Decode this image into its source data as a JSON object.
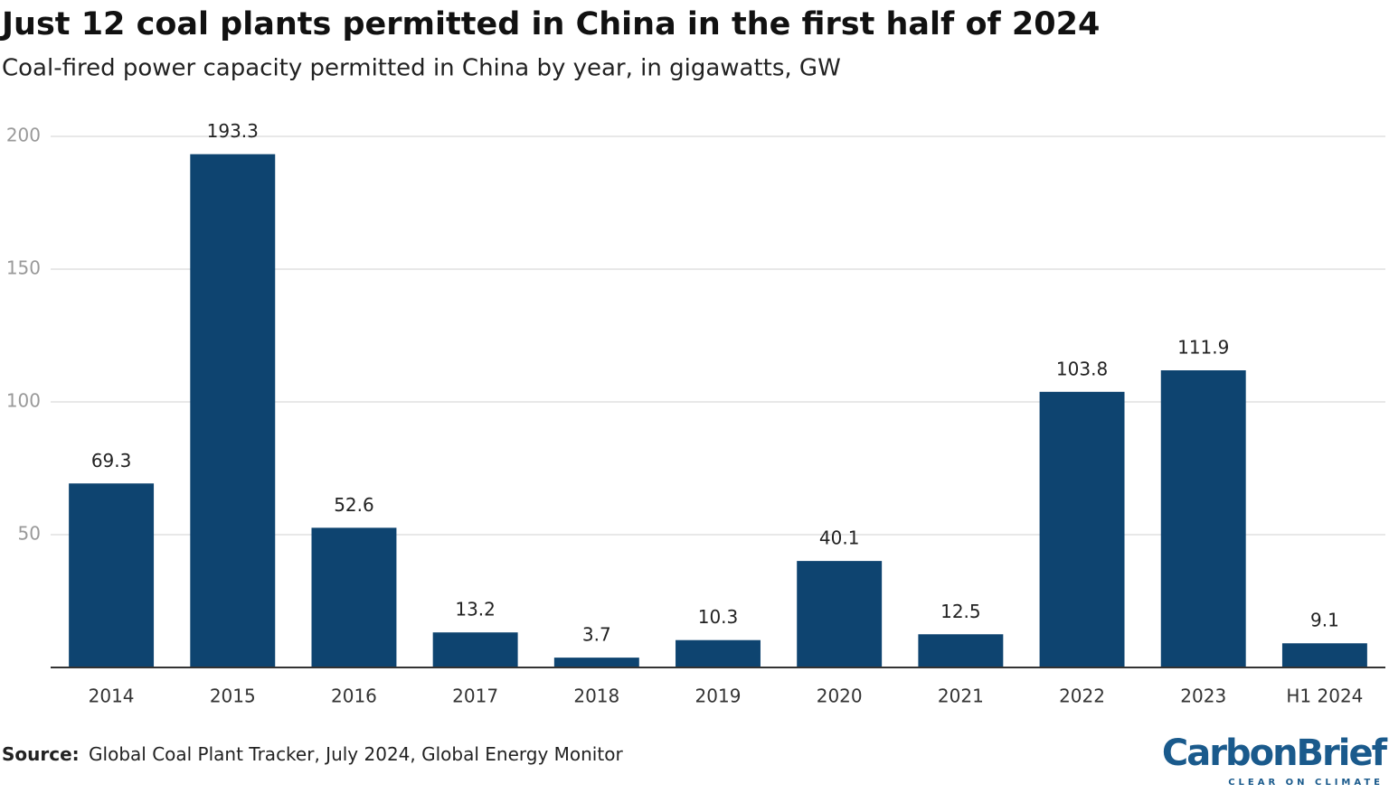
{
  "chart_data": {
    "type": "bar",
    "title": "Just 12 coal plants permitted in China in the first half of 2024",
    "subtitle": "Coal-fired power capacity permitted in China by year, in gigawatts, GW",
    "categories": [
      "2014",
      "2015",
      "2016",
      "2017",
      "2018",
      "2019",
      "2020",
      "2021",
      "2022",
      "2023",
      "H1 2024"
    ],
    "values": [
      69.3,
      193.3,
      52.6,
      13.2,
      3.7,
      10.3,
      40.1,
      12.5,
      103.8,
      111.9,
      9.1
    ],
    "color": "#0e4470",
    "ylim": [
      0,
      200
    ],
    "yticks": [
      50,
      100,
      150,
      200
    ],
    "grid": true,
    "source": {
      "label": "Source:",
      "text": "Global Coal Plant Tracker, July 2024, Global Energy Monitor"
    },
    "logo": {
      "name": "CarbonBrief",
      "tagline": "CLEAR ON CLIMATE"
    }
  }
}
